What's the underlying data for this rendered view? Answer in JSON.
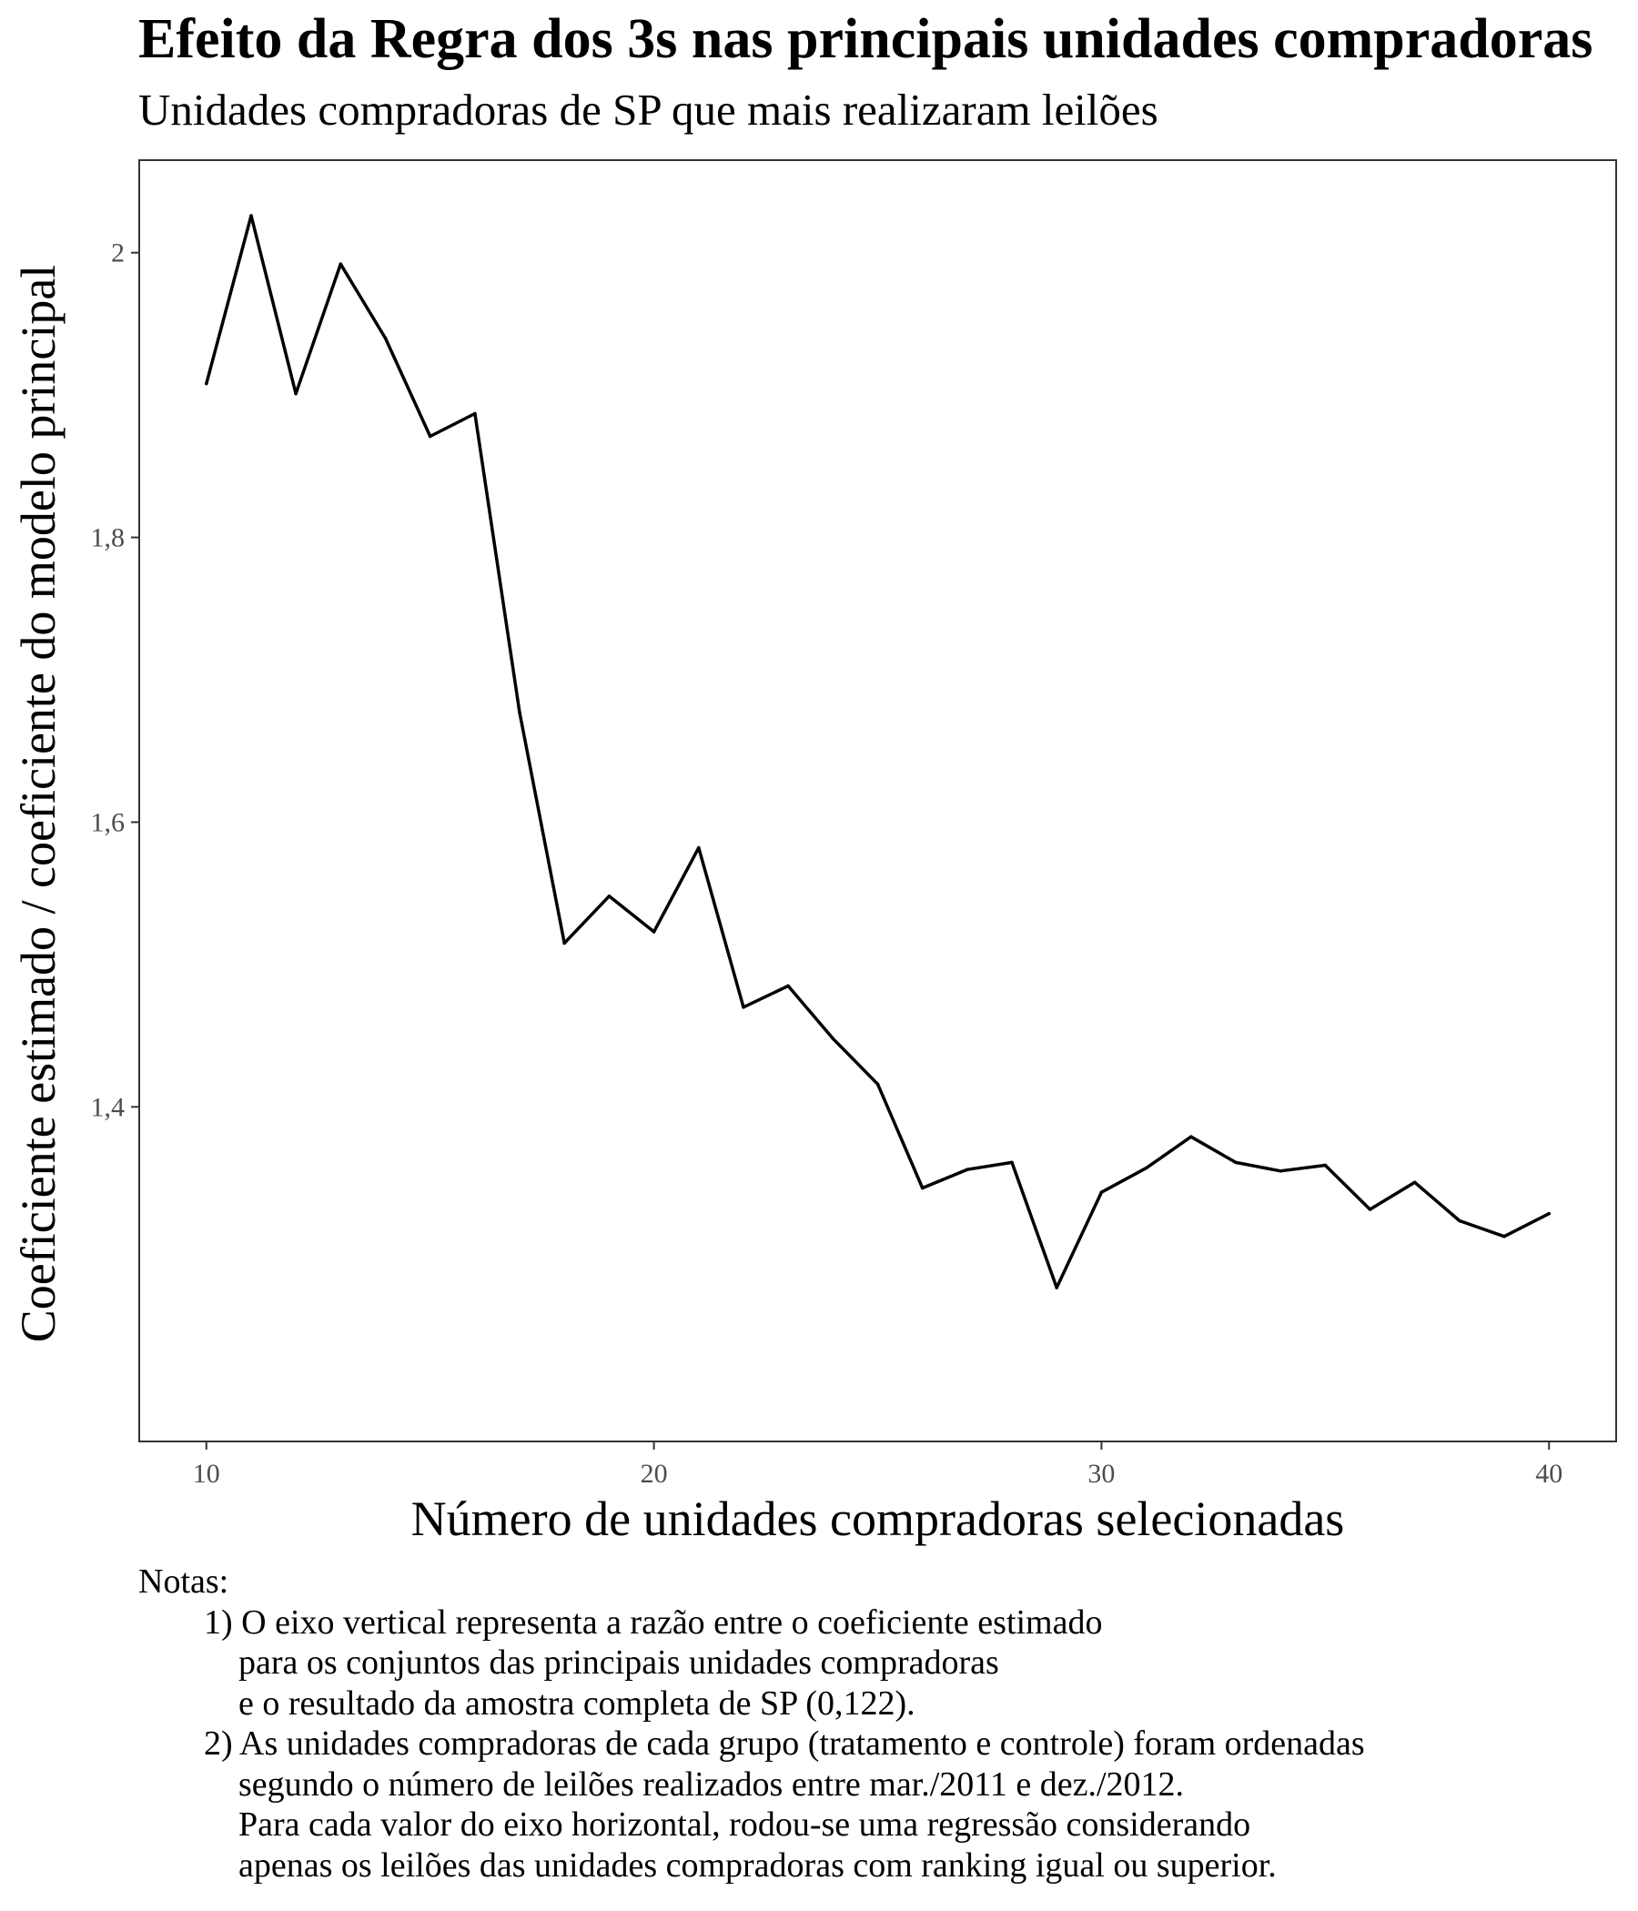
{
  "chart_data": {
    "type": "line",
    "title": "Efeito da Regra dos 3s nas principais unidades compradoras",
    "subtitle": "Unidades compradoras de SP que mais realizaram leilões",
    "xlabel": "Número de unidades compradoras selecionadas",
    "ylabel": "Coeficiente estimado / coeficiente do modelo principal",
    "xlim": [
      8.5,
      41.5
    ],
    "ylim": [
      1.165,
      2.065
    ],
    "x_ticks": [
      10,
      20,
      30,
      40
    ],
    "x_tick_labels": [
      "10",
      "20",
      "30",
      "40"
    ],
    "y_ticks": [
      1.4,
      1.6,
      1.8,
      2.0
    ],
    "y_tick_labels": [
      "1,4",
      "1,6",
      "1,8",
      "2"
    ],
    "grid": false,
    "line_color": "#000000",
    "series": [
      {
        "x": [
          10,
          11,
          12,
          13,
          14,
          15,
          16,
          17,
          18,
          19,
          20,
          21,
          22,
          23,
          24,
          25,
          26,
          27,
          28,
          29,
          30,
          31,
          32,
          33,
          34,
          35,
          36,
          37,
          38,
          39,
          40
        ],
        "values": [
          1.908,
          2.026,
          1.901,
          1.992,
          1.94,
          1.871,
          1.887,
          1.677,
          1.515,
          1.548,
          1.523,
          1.582,
          1.47,
          1.485,
          1.448,
          1.416,
          1.343,
          1.356,
          1.361,
          1.273,
          1.34,
          1.357,
          1.379,
          1.361,
          1.355,
          1.359,
          1.328,
          1.347,
          1.32,
          1.309,
          1.325
        ]
      }
    ]
  },
  "notes": {
    "heading": "Notas:",
    "line1": "1) O eixo vertical representa a razão entre o coeficiente estimado",
    "line2": "para os conjuntos das principais unidades compradoras",
    "line3": "e o resultado da amostra completa de SP (0,122).",
    "line4": "2) As unidades compradoras de cada grupo (tratamento e controle) foram ordenadas",
    "line5": "segundo o número de leilões realizados entre mar./2011 e dez./2012.",
    "line6": "Para cada valor do eixo horizontal, rodou-se uma regressão considerando",
    "line7": "apenas os leilões das unidades compradoras com ranking igual ou superior."
  }
}
